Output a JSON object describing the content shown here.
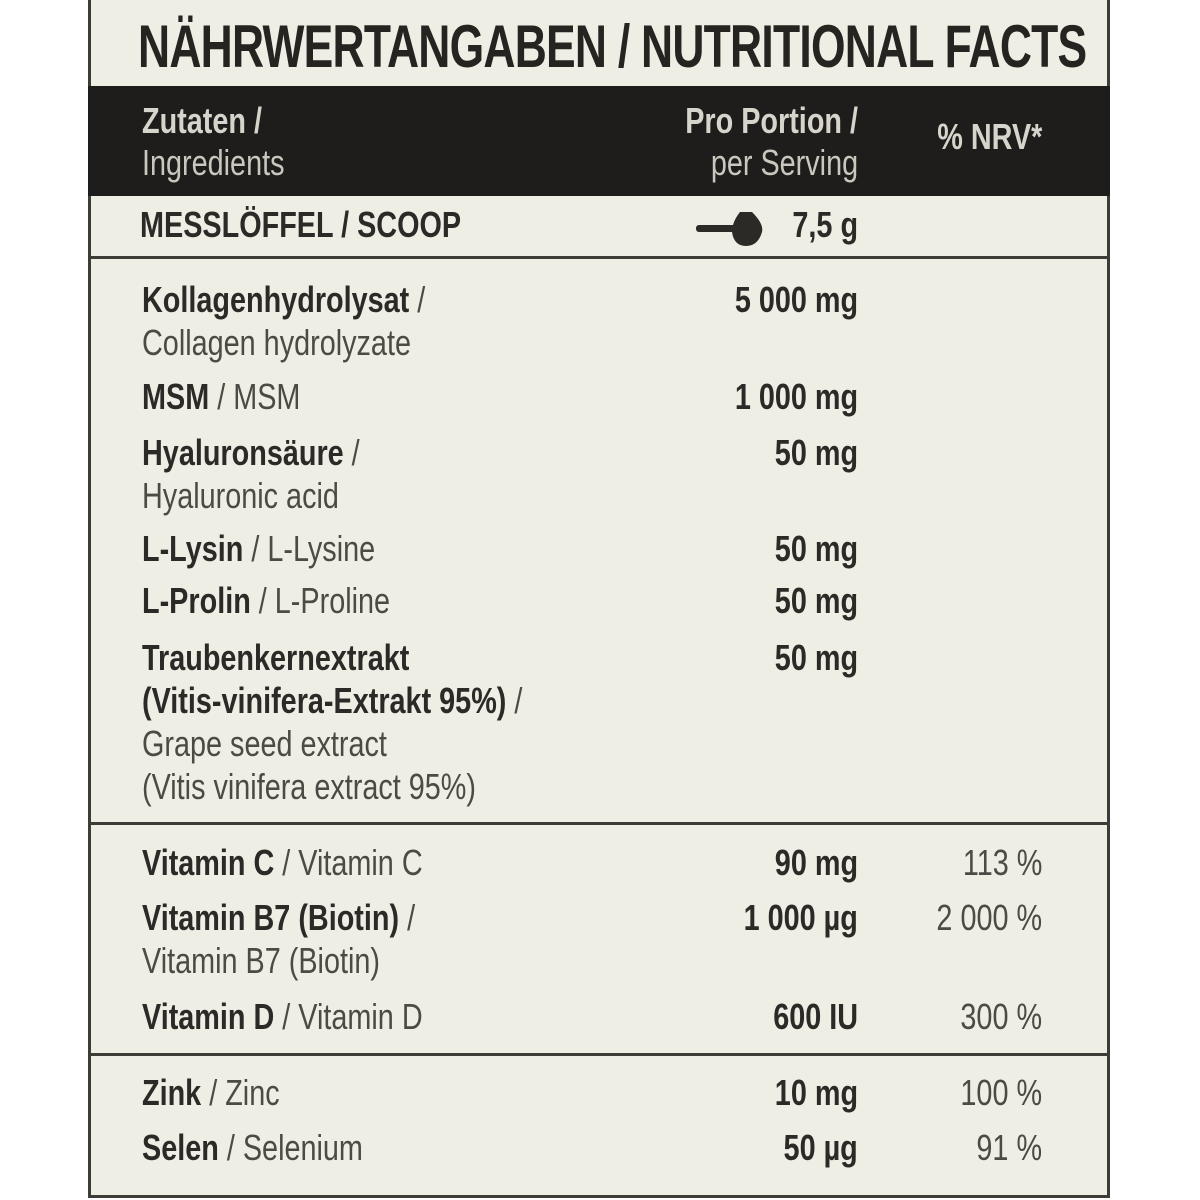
{
  "title": "NÄHRWERTANGABEN / NUTRITIONAL FACTS",
  "header": {
    "col1_line1": "Zutaten /",
    "col1_line2": "Ingredients",
    "col2_line1": "Pro Portion /",
    "col2_line2": "per Serving",
    "col3": "% NRV*"
  },
  "scoop": {
    "label": "MESSLÖFFEL / SCOOP",
    "icon": "scoop-icon",
    "amount": "7,5 g"
  },
  "rows": [
    {
      "lines": [
        [
          "Kollagenhydrolysat",
          " /"
        ],
        [
          "",
          "Collagen hydrolyzate"
        ]
      ],
      "amount": "5 000 mg",
      "nrv": ""
    },
    {
      "lines": [
        [
          "MSM",
          " / MSM"
        ]
      ],
      "amount": "1 000 mg",
      "nrv": ""
    },
    {
      "lines": [
        [
          "Hyaluronsäure",
          " /"
        ],
        [
          "",
          "Hyaluronic acid"
        ]
      ],
      "amount": "50 mg",
      "nrv": ""
    },
    {
      "lines": [
        [
          "L-Lysin",
          " / L-Lysine"
        ]
      ],
      "amount": "50 mg",
      "nrv": ""
    },
    {
      "lines": [
        [
          "L-Prolin",
          " / L-Proline"
        ]
      ],
      "amount": "50 mg",
      "nrv": ""
    },
    {
      "lines": [
        [
          "Traubenkernextrakt",
          ""
        ],
        [
          "(Vitis-vinifera-Extrakt 95%)",
          " /"
        ],
        [
          "",
          "Grape seed extract"
        ],
        [
          "",
          "(Vitis vinifera extract 95%)"
        ]
      ],
      "amount": "50 mg",
      "nrv": ""
    },
    {
      "lines": [
        [
          "Vitamin C",
          " / Vitamin C"
        ]
      ],
      "amount": "90 mg",
      "nrv": "113 %"
    },
    {
      "lines": [
        [
          "Vitamin B7 (Biotin)",
          " /"
        ],
        [
          "",
          "Vitamin B7 (Biotin)"
        ]
      ],
      "amount": "1 000 µg",
      "nrv": "2 000 %"
    },
    {
      "lines": [
        [
          "Vitamin D",
          " / Vitamin D"
        ]
      ],
      "amount": "600 IU",
      "nrv": "300 %"
    },
    {
      "lines": [
        [
          "Zink",
          " / Zinc"
        ]
      ],
      "amount": "10 mg",
      "nrv": "100 %"
    },
    {
      "lines": [
        [
          "Selen",
          " / Selenium"
        ]
      ],
      "amount": "50 µg",
      "nrv": "91 %"
    }
  ]
}
